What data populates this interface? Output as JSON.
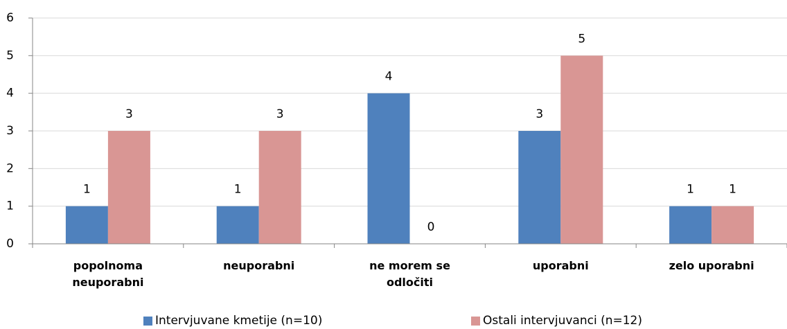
{
  "chart_data": {
    "type": "bar",
    "categories": [
      "popolnoma neuporabni",
      "neuporabni",
      "ne morem se odločiti",
      "uporabni",
      "zelo uporabni"
    ],
    "series": [
      {
        "name": "Intervjuvane kmetije (n=10)",
        "color": "#4f81bd",
        "values": [
          1,
          1,
          4,
          3,
          1
        ]
      },
      {
        "name": "Ostali intervjuvanci (n=12)",
        "color": "#d99694",
        "values": [
          3,
          3,
          0,
          5,
          1
        ]
      }
    ],
    "ylim": [
      0,
      6
    ],
    "yticks": [
      0,
      1,
      2,
      3,
      4,
      5,
      6
    ],
    "grid": true,
    "legend": "bottom"
  }
}
